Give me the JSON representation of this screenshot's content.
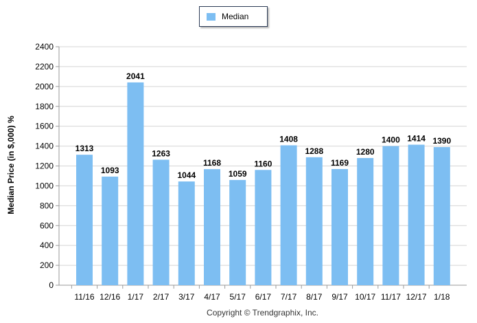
{
  "chart_data": {
    "type": "bar",
    "categories": [
      "11/16",
      "12/16",
      "1/17",
      "2/17",
      "3/17",
      "4/17",
      "5/17",
      "6/17",
      "7/17",
      "8/17",
      "9/17",
      "10/17",
      "11/17",
      "12/17",
      "1/18"
    ],
    "series": [
      {
        "name": "Median",
        "values": [
          1313,
          1093,
          2041,
          1263,
          1044,
          1168,
          1059,
          1160,
          1408,
          1288,
          1169,
          1280,
          1400,
          1414,
          1390
        ]
      }
    ],
    "ylabel": "Median Price (in $,000) %",
    "xlabel": "",
    "ylim": [
      0,
      2400
    ],
    "yticks": [
      "0",
      "200",
      "400",
      "600",
      "800",
      "1000",
      "1200",
      "1400",
      "1600",
      "1800",
      "2000",
      "2200",
      "2400"
    ],
    "grid": true,
    "legend_position": "top-center",
    "bar_color": "#7dbef2"
  },
  "footer": "Copyright © Trendgraphix, Inc."
}
